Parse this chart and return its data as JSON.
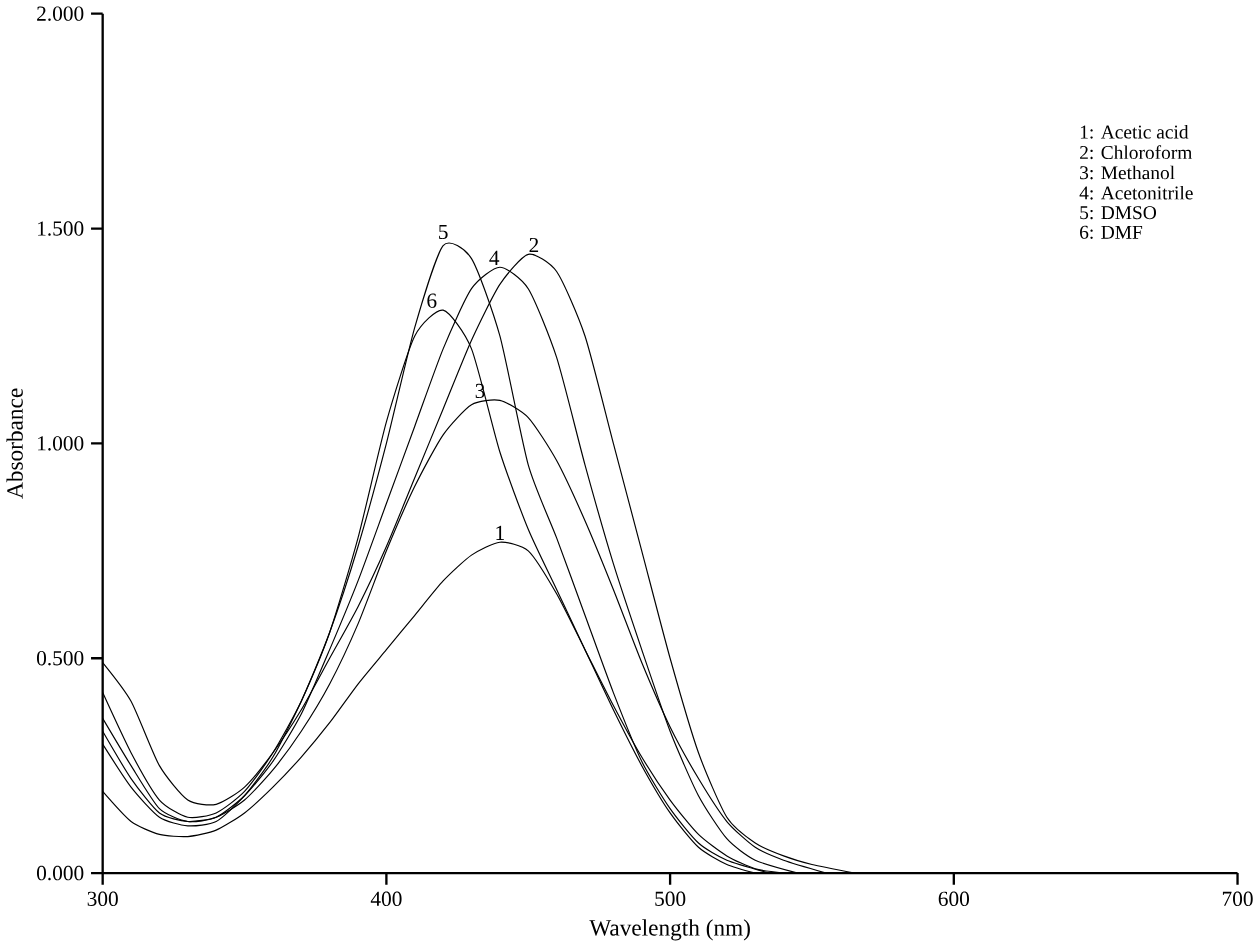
{
  "chart_data": {
    "type": "line",
    "xlabel": "Wavelength (nm)",
    "ylabel": "Absorbance",
    "xlim": [
      300,
      700
    ],
    "ylim": [
      0,
      2
    ],
    "xticks": [
      300,
      400,
      500,
      600,
      700
    ],
    "yticks": [
      {
        "value": 0,
        "label": "0.000"
      },
      {
        "value": 0.5,
        "label": "0.500"
      },
      {
        "value": 1,
        "label": "1.000"
      },
      {
        "value": 1.5,
        "label": "1.500"
      },
      {
        "value": 2,
        "label": "2.000"
      }
    ],
    "legend": "top right",
    "grid": false,
    "marker": "none",
    "line_style": "solid",
    "series": [
      {
        "name": "1: Acetic acid",
        "color": "#000000",
        "x": [
          300,
          310,
          320,
          330,
          340,
          350,
          360,
          370,
          380,
          390,
          400,
          410,
          420,
          430,
          440,
          450,
          460,
          470,
          480,
          490,
          500,
          510,
          520,
          530,
          540
        ],
        "values": [
          0.19,
          0.12,
          0.09,
          0.085,
          0.1,
          0.14,
          0.2,
          0.27,
          0.35,
          0.44,
          0.52,
          0.6,
          0.68,
          0.74,
          0.77,
          0.75,
          0.65,
          0.52,
          0.39,
          0.27,
          0.17,
          0.09,
          0.04,
          0.01,
          0
        ]
      },
      {
        "name": "2: Chloroform",
        "color": "#000000",
        "x": [
          300,
          310,
          320,
          330,
          340,
          350,
          360,
          370,
          380,
          390,
          400,
          410,
          420,
          430,
          440,
          450,
          460,
          470,
          480,
          490,
          500,
          510,
          520,
          530,
          540,
          550,
          565
        ],
        "values": [
          0.49,
          0.4,
          0.25,
          0.17,
          0.16,
          0.2,
          0.28,
          0.38,
          0.5,
          0.62,
          0.76,
          0.92,
          1.08,
          1.24,
          1.37,
          1.44,
          1.4,
          1.25,
          1.0,
          0.75,
          0.5,
          0.28,
          0.13,
          0.07,
          0.04,
          0.02,
          0
        ]
      },
      {
        "name": "3: Methanol",
        "color": "#000000",
        "x": [
          300,
          310,
          320,
          330,
          340,
          350,
          360,
          370,
          380,
          390,
          400,
          410,
          420,
          430,
          440,
          450,
          460,
          470,
          480,
          490,
          500,
          510,
          520,
          530,
          540,
          555
        ],
        "values": [
          0.33,
          0.22,
          0.14,
          0.12,
          0.13,
          0.17,
          0.24,
          0.33,
          0.44,
          0.58,
          0.75,
          0.9,
          1.02,
          1.09,
          1.1,
          1.06,
          0.96,
          0.82,
          0.66,
          0.49,
          0.34,
          0.22,
          0.12,
          0.06,
          0.03,
          0
        ]
      },
      {
        "name": "4: Acetonitrile",
        "color": "#000000",
        "x": [
          300,
          310,
          320,
          330,
          340,
          350,
          360,
          370,
          380,
          390,
          400,
          410,
          420,
          430,
          440,
          450,
          460,
          470,
          480,
          490,
          500,
          510,
          520,
          530,
          545
        ],
        "values": [
          0.36,
          0.25,
          0.15,
          0.12,
          0.13,
          0.18,
          0.26,
          0.37,
          0.52,
          0.68,
          0.86,
          1.04,
          1.22,
          1.36,
          1.41,
          1.36,
          1.2,
          0.95,
          0.72,
          0.52,
          0.33,
          0.18,
          0.08,
          0.03,
          0
        ]
      },
      {
        "name": "5: DMSO",
        "color": "#000000",
        "x": [
          300,
          310,
          320,
          330,
          340,
          350,
          360,
          370,
          380,
          390,
          400,
          410,
          420,
          430,
          440,
          450,
          460,
          470,
          480,
          490,
          500,
          510,
          520,
          535
        ],
        "values": [
          0.42,
          0.28,
          0.17,
          0.13,
          0.14,
          0.19,
          0.28,
          0.4,
          0.56,
          0.76,
          1.0,
          1.27,
          1.46,
          1.43,
          1.25,
          0.95,
          0.78,
          0.6,
          0.42,
          0.26,
          0.15,
          0.07,
          0.03,
          0
        ]
      },
      {
        "name": "6: DMF",
        "color": "#000000",
        "x": [
          300,
          310,
          320,
          330,
          340,
          350,
          360,
          370,
          380,
          390,
          400,
          410,
          420,
          430,
          440,
          450,
          460,
          470,
          480,
          490,
          500,
          510,
          520,
          530
        ],
        "values": [
          0.3,
          0.2,
          0.13,
          0.11,
          0.12,
          0.18,
          0.27,
          0.4,
          0.56,
          0.78,
          1.05,
          1.25,
          1.31,
          1.22,
          0.98,
          0.8,
          0.66,
          0.52,
          0.38,
          0.25,
          0.14,
          0.06,
          0.02,
          0
        ]
      }
    ],
    "annotations": [
      {
        "text": "1",
        "x": 440,
        "y": 0.77
      },
      {
        "text": "2",
        "x": 452,
        "y": 1.44
      },
      {
        "text": "3",
        "x": 433,
        "y": 1.1
      },
      {
        "text": "4",
        "x": 438,
        "y": 1.41
      },
      {
        "text": "5",
        "x": 420,
        "y": 1.47
      },
      {
        "text": "6",
        "x": 416,
        "y": 1.31
      }
    ]
  }
}
